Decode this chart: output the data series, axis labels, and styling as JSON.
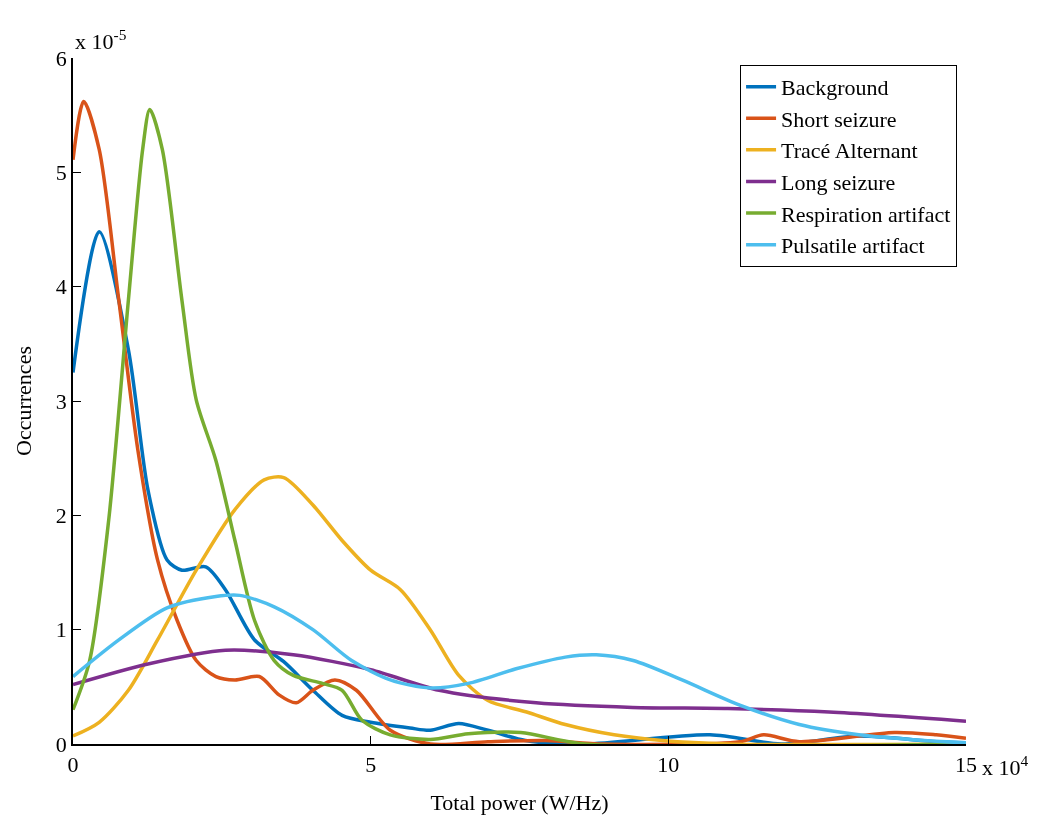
{
  "chart_data": {
    "type": "line",
    "xlabel": "Total power (W/Hz)",
    "ylabel": "Occurrences",
    "xlim": [
      0,
      15
    ],
    "xticks": [
      0,
      5,
      10,
      15
    ],
    "ylim": [
      0,
      6
    ],
    "yticks": [
      0,
      1,
      2,
      3,
      4,
      5,
      6
    ],
    "grid": false,
    "legend": "top right",
    "marker": "none",
    "line_style": "solid",
    "annotations": [
      "x 10$^{-5}$",
      "x 10$^{4}$"
    ],
    "series": [
      {
        "name": "Background",
        "color": "#0072bd",
        "x": [
          0,
          0.44,
          0.93,
          1.26,
          1.58,
          1.83,
          2.23,
          2.56,
          3.05,
          3.54,
          4.03,
          4.52,
          5,
          5.66,
          6,
          6.48,
          6.97,
          7.6,
          8.6,
          10.7,
          11.9,
          13.2,
          14.5,
          15
        ],
        "values": [
          3.25,
          4.48,
          3.45,
          2.22,
          1.61,
          1.52,
          1.55,
          1.35,
          0.91,
          0.72,
          0.47,
          0.25,
          0.19,
          0.14,
          0.12,
          0.18,
          0.12,
          0.03,
          0,
          0.08,
          0,
          0.07,
          0.02,
          0.01
        ]
      },
      {
        "name": "Short seizure",
        "color": "#d95319",
        "x": [
          0,
          0.18,
          0.44,
          0.77,
          1.09,
          1.42,
          1.75,
          2.07,
          2.4,
          2.72,
          3.13,
          3.46,
          3.75,
          4.03,
          4.4,
          4.76,
          5.33,
          6,
          6.97,
          7.94,
          8.92,
          11.2,
          11.6,
          12.2,
          13.8,
          14.5,
          15
        ],
        "values": [
          5.11,
          5.62,
          5.2,
          3.88,
          2.57,
          1.61,
          1.08,
          0.73,
          0.59,
          0.56,
          0.59,
          0.43,
          0.36,
          0.47,
          0.56,
          0.47,
          0.12,
          0,
          0.02,
          0.03,
          0,
          0.02,
          0.08,
          0.02,
          0.1,
          0.08,
          0.05
        ]
      },
      {
        "name": "Tracé Alternant",
        "color": "#edb120",
        "x": [
          0,
          0.44,
          0.93,
          1.42,
          2.07,
          2.72,
          3.21,
          3.54,
          4.03,
          4.52,
          5,
          5.5,
          6,
          6.48,
          6.97,
          7.62,
          8.27,
          9.09,
          9.9,
          11,
          15
        ],
        "values": [
          0.07,
          0.19,
          0.47,
          0.91,
          1.52,
          2.05,
          2.31,
          2.33,
          2.09,
          1.78,
          1.52,
          1.35,
          1.0,
          0.6,
          0.38,
          0.28,
          0.17,
          0.08,
          0.03,
          0,
          0
        ]
      },
      {
        "name": "Long seizure",
        "color": "#7e2f8e",
        "x": [
          0,
          1.26,
          2.56,
          3.7,
          5,
          6.15,
          7.78,
          9.4,
          11,
          12.7,
          15
        ],
        "values": [
          0.52,
          0.7,
          0.82,
          0.78,
          0.65,
          0.47,
          0.36,
          0.32,
          0.31,
          0.28,
          0.2
        ]
      },
      {
        "name": "Respiration artifact",
        "color": "#77ac30",
        "x": [
          0,
          0.28,
          0.6,
          0.93,
          1.17,
          1.29,
          1.5,
          1.83,
          2.07,
          2.4,
          2.72,
          3.05,
          3.38,
          3.7,
          4.19,
          4.52,
          4.85,
          5.33,
          6,
          6.64,
          7.52,
          8.6,
          15
        ],
        "values": [
          0.3,
          0.73,
          1.96,
          3.88,
          5.2,
          5.55,
          5.2,
          3.88,
          3.01,
          2.48,
          1.78,
          1.08,
          0.73,
          0.6,
          0.53,
          0.47,
          0.21,
          0.08,
          0.04,
          0.09,
          0.1,
          0,
          0
        ]
      },
      {
        "name": "Pulsatile artifact",
        "color": "#4dbeee",
        "x": [
          0,
          0.77,
          1.58,
          2.4,
          2.8,
          3.38,
          4.03,
          4.68,
          5.33,
          6,
          6.64,
          7.46,
          8.27,
          8.79,
          9.41,
          10.23,
          11.2,
          12.2,
          13.2,
          14.3,
          15
        ],
        "values": [
          0.59,
          0.91,
          1.19,
          1.29,
          1.3,
          1.2,
          1.0,
          0.73,
          0.56,
          0.49,
          0.53,
          0.66,
          0.76,
          0.78,
          0.73,
          0.56,
          0.34,
          0.17,
          0.08,
          0.03,
          0.01
        ]
      }
    ]
  }
}
